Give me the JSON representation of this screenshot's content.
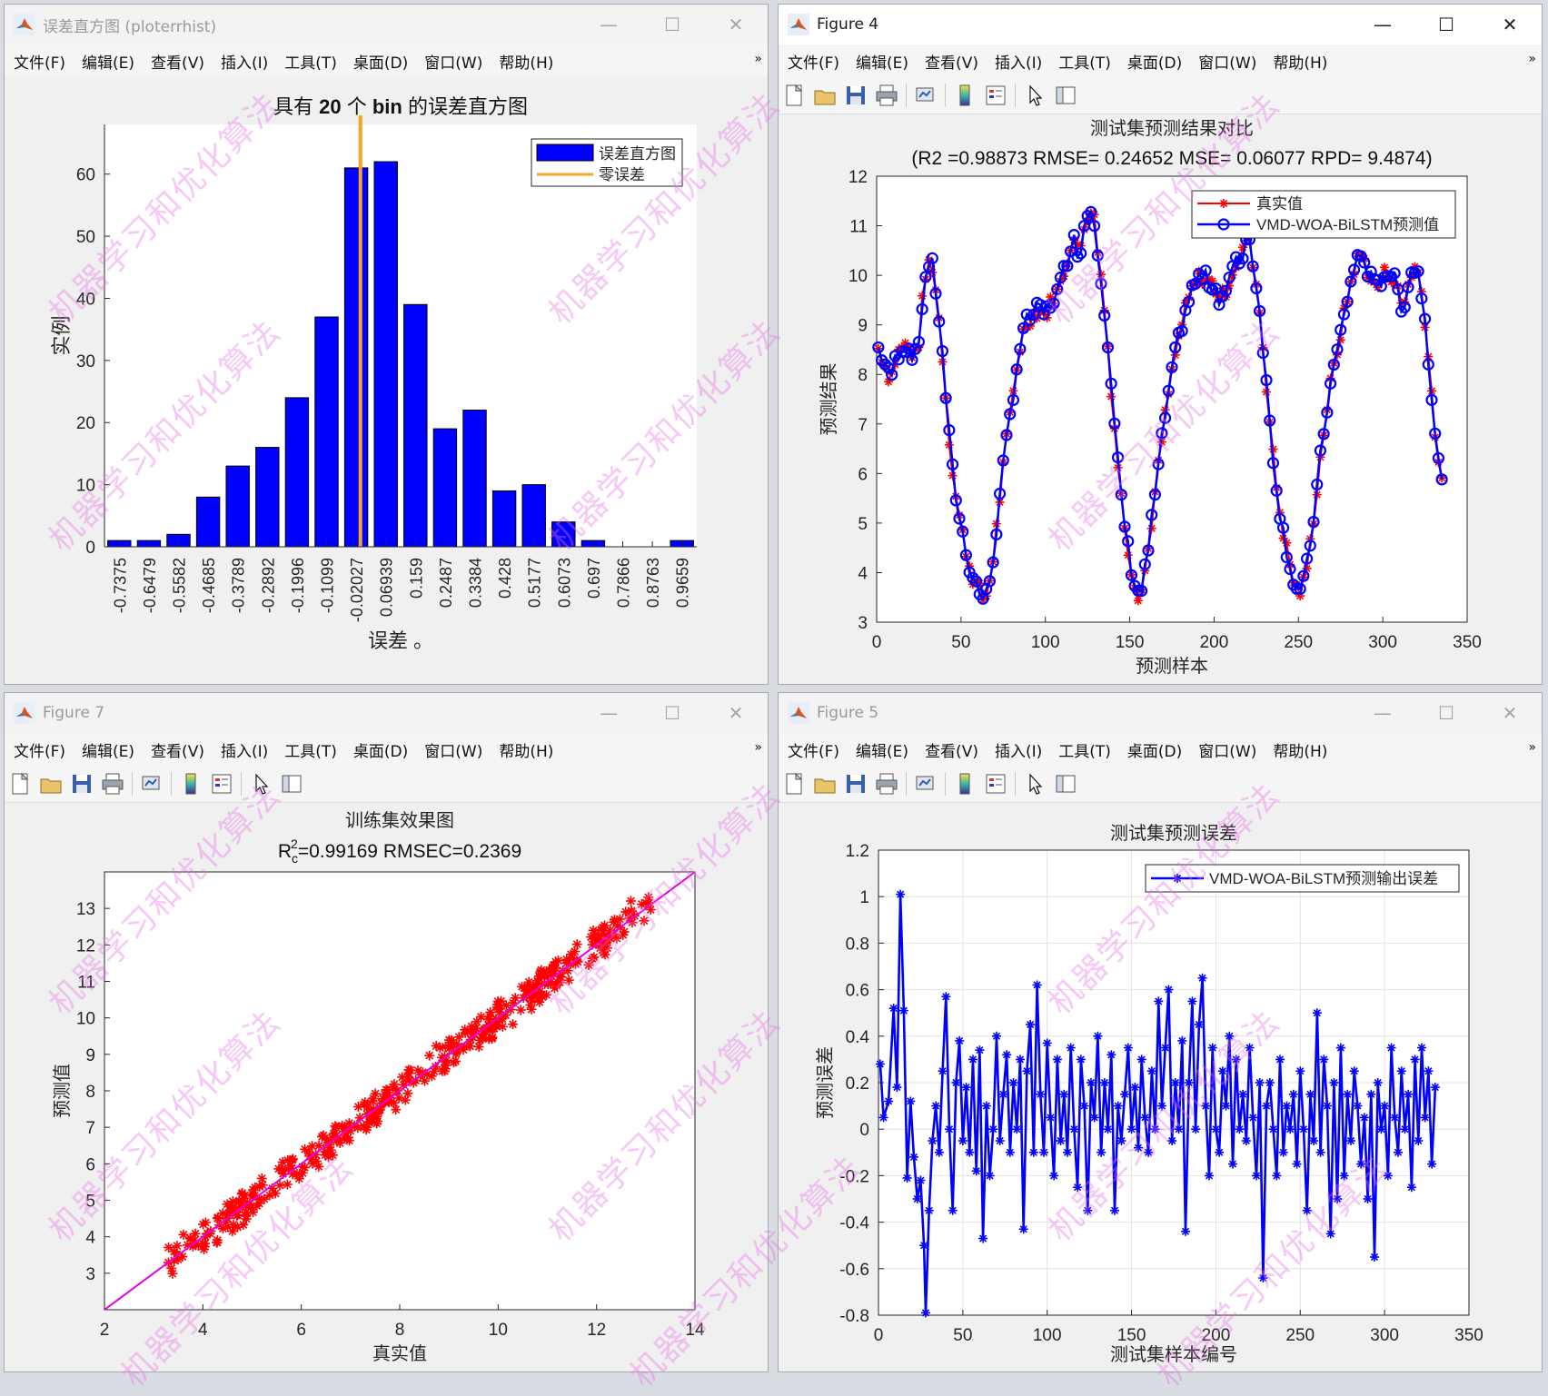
{
  "watermark_text": "机器学习和优化算法",
  "menus": [
    "文件(F)",
    "编辑(E)",
    "查看(V)",
    "插入(I)",
    "工具(T)",
    "桌面(D)",
    "窗口(W)",
    "帮助(H)"
  ],
  "window_buttons": {
    "minimize": "—",
    "maximize": "☐",
    "close": "✕"
  },
  "windows": {
    "hist": {
      "title": "误差直方图 (ploterrhist)",
      "chart_data": {
        "type": "bar",
        "title_parts": [
          "具有 ",
          "20",
          " 个 ",
          "bin",
          " 的误差直方图"
        ],
        "xlabel": "误差 。",
        "ylabel": "实例",
        "categories": [
          "-0.7375",
          "-0.6479",
          "-0.5582",
          "-0.4685",
          "-0.3789",
          "-0.2892",
          "-0.1996",
          "-0.1099",
          "-0.02027",
          "0.06939",
          "0.159",
          "0.2487",
          "0.3384",
          "0.428",
          "0.5177",
          "0.6073",
          "0.697",
          "0.7866",
          "0.8763",
          "0.9659"
        ],
        "values": [
          1,
          1,
          2,
          8,
          13,
          16,
          24,
          37,
          61,
          62,
          39,
          19,
          22,
          9,
          10,
          4,
          1,
          0,
          0,
          1
        ],
        "ylim": [
          0,
          68
        ],
        "yticks": [
          "0",
          "10",
          "20",
          "30",
          "40",
          "50",
          "60"
        ],
        "zero_error_x": -0.0075,
        "legend": [
          "误差直方图",
          "零误差"
        ],
        "colors": {
          "bars": "#0000ff",
          "zero_line": "#f5a623"
        }
      }
    },
    "fig4": {
      "title": "Figure 4",
      "chart_data": {
        "type": "line",
        "title": "测试集预测结果对比",
        "subtitle": "(R2 =0.98873 RMSE= 0.24652 MSE= 0.06077 RPD= 9.4874)",
        "xlabel": "预测样本",
        "ylabel": "预测结果",
        "xlim": [
          0,
          350
        ],
        "ylim": [
          3,
          12
        ],
        "xticks": [
          "0",
          "50",
          "100",
          "150",
          "200",
          "250",
          "300",
          "350"
        ],
        "yticks": [
          "3",
          "4",
          "5",
          "6",
          "7",
          "8",
          "9",
          "10",
          "11",
          "12"
        ],
        "legend": [
          "真实值",
          "VMD-WOA-BiLSTM预测值"
        ],
        "colors": {
          "actual": "#ff0000",
          "predicted": "#0000ff"
        },
        "key_points": [
          [
            0,
            8.6
          ],
          [
            4,
            8.3
          ],
          [
            8,
            7.9
          ],
          [
            12,
            8.4
          ],
          [
            16,
            8.6
          ],
          [
            20,
            8.5
          ],
          [
            24,
            8.3
          ],
          [
            28,
            9.8
          ],
          [
            32,
            10.4
          ],
          [
            36,
            9.5
          ],
          [
            40,
            8.0
          ],
          [
            44,
            6.3
          ],
          [
            48,
            5.3
          ],
          [
            52,
            4.6
          ],
          [
            56,
            4.0
          ],
          [
            60,
            3.7
          ],
          [
            64,
            3.4
          ],
          [
            68,
            4.0
          ],
          [
            72,
            5.2
          ],
          [
            76,
            6.4
          ],
          [
            80,
            7.4
          ],
          [
            84,
            8.4
          ],
          [
            88,
            9.0
          ],
          [
            92,
            9.2
          ],
          [
            96,
            9.3
          ],
          [
            100,
            9.2
          ],
          [
            104,
            9.5
          ],
          [
            108,
            9.7
          ],
          [
            112,
            10.2
          ],
          [
            116,
            10.8
          ],
          [
            120,
            10.4
          ],
          [
            124,
            11.2
          ],
          [
            128,
            11.4
          ],
          [
            132,
            10.3
          ],
          [
            136,
            9.0
          ],
          [
            140,
            7.3
          ],
          [
            144,
            5.8
          ],
          [
            148,
            4.7
          ],
          [
            152,
            3.9
          ],
          [
            156,
            3.5
          ],
          [
            160,
            4.2
          ],
          [
            164,
            5.3
          ],
          [
            168,
            6.4
          ],
          [
            172,
            7.4
          ],
          [
            176,
            8.2
          ],
          [
            180,
            8.9
          ],
          [
            184,
            9.4
          ],
          [
            188,
            9.8
          ],
          [
            192,
            10.0
          ],
          [
            196,
            9.9
          ],
          [
            200,
            9.8
          ],
          [
            204,
            9.5
          ],
          [
            208,
            9.8
          ],
          [
            212,
            10.2
          ],
          [
            216,
            10.3
          ],
          [
            220,
            10.9
          ],
          [
            224,
            10.1
          ],
          [
            228,
            9.0
          ],
          [
            232,
            7.4
          ],
          [
            236,
            6.0
          ],
          [
            240,
            5.0
          ],
          [
            244,
            4.3
          ],
          [
            248,
            3.7
          ],
          [
            252,
            3.6
          ],
          [
            256,
            4.3
          ],
          [
            260,
            5.4
          ],
          [
            264,
            6.6
          ],
          [
            268,
            7.6
          ],
          [
            272,
            8.3
          ],
          [
            276,
            9.0
          ],
          [
            280,
            9.7
          ],
          [
            284,
            10.3
          ],
          [
            288,
            10.4
          ],
          [
            292,
            10.0
          ],
          [
            296,
            9.7
          ],
          [
            300,
            10.0
          ],
          [
            304,
            10.1
          ],
          [
            308,
            9.8
          ],
          [
            312,
            9.3
          ],
          [
            316,
            10.0
          ],
          [
            320,
            10.2
          ],
          [
            324,
            9.5
          ],
          [
            328,
            8.0
          ],
          [
            332,
            6.5
          ],
          [
            336,
            5.5
          ]
        ]
      }
    },
    "fig7": {
      "title": "Figure 7",
      "chart_data": {
        "type": "scatter",
        "title": "训练集效果图",
        "subtitle_parts": [
          "R",
          "c",
          "2",
          "=0.99169  RMSEC=0.2369"
        ],
        "xlabel": "真实值",
        "ylabel": "预测值",
        "xlim": [
          2,
          14
        ],
        "ylim": [
          2,
          14
        ],
        "xticks": [
          "2",
          "4",
          "6",
          "8",
          "10",
          "12",
          "14"
        ],
        "yticks": [
          "3",
          "4",
          "5",
          "6",
          "7",
          "8",
          "9",
          "10",
          "11",
          "12",
          "13"
        ],
        "x_range": [
          3.3,
          13.1
        ],
        "colors": {
          "points": "#ff0000",
          "fit_line": "#e600e6"
        }
      }
    },
    "fig5": {
      "title": "Figure 5",
      "chart_data": {
        "type": "line",
        "title": "测试集预测误差",
        "xlabel": "测试集样本编号",
        "ylabel": "预测误差",
        "xlim": [
          0,
          350
        ],
        "ylim": [
          -0.8,
          1.2
        ],
        "xticks": [
          "0",
          "50",
          "100",
          "150",
          "200",
          "250",
          "300",
          "350"
        ],
        "yticks": [
          "-0.8",
          "-0.6",
          "-0.4",
          "-0.2",
          "0",
          "0.2",
          "0.4",
          "0.6",
          "0.8",
          "1",
          "1.2"
        ],
        "legend": [
          "VMD-WOA-BiLSTM预测输出误差"
        ],
        "colors": {
          "line": "#0000ff"
        },
        "key_points": [
          [
            1,
            0.28
          ],
          [
            3,
            0.05
          ],
          [
            6,
            0.12
          ],
          [
            9,
            0.52
          ],
          [
            11,
            0.18
          ],
          [
            13,
            1.01
          ],
          [
            15,
            0.51
          ],
          [
            17,
            -0.21
          ],
          [
            19,
            0.12
          ],
          [
            21,
            -0.12
          ],
          [
            23,
            -0.3
          ],
          [
            25,
            -0.22
          ],
          [
            27,
            -0.5
          ],
          [
            28,
            -0.79
          ],
          [
            30,
            -0.35
          ],
          [
            32,
            -0.05
          ],
          [
            34,
            0.1
          ],
          [
            36,
            -0.1
          ],
          [
            38,
            0.25
          ],
          [
            40,
            0.57
          ],
          [
            42,
            0.0
          ],
          [
            44,
            -0.35
          ],
          [
            46,
            0.2
          ],
          [
            48,
            0.38
          ],
          [
            50,
            -0.05
          ],
          [
            52,
            0.18
          ],
          [
            54,
            -0.1
          ],
          [
            56,
            0.3
          ],
          [
            58,
            -0.18
          ],
          [
            60,
            0.34
          ],
          [
            62,
            -0.47
          ],
          [
            64,
            0.1
          ],
          [
            66,
            -0.2
          ],
          [
            68,
            0.0
          ],
          [
            70,
            0.4
          ],
          [
            72,
            -0.05
          ],
          [
            74,
            0.15
          ],
          [
            76,
            0.32
          ],
          [
            78,
            -0.1
          ],
          [
            80,
            0.2
          ],
          [
            82,
            0.0
          ],
          [
            84,
            0.3
          ],
          [
            86,
            -0.43
          ],
          [
            88,
            0.25
          ],
          [
            90,
            0.45
          ],
          [
            92,
            -0.1
          ],
          [
            94,
            0.62
          ],
          [
            96,
            0.15
          ],
          [
            98,
            -0.1
          ],
          [
            100,
            0.37
          ],
          [
            102,
            0.05
          ],
          [
            104,
            -0.2
          ],
          [
            106,
            0.3
          ],
          [
            108,
            -0.05
          ],
          [
            110,
            0.15
          ],
          [
            112,
            -0.1
          ],
          [
            114,
            0.35
          ],
          [
            116,
            0.0
          ],
          [
            118,
            -0.25
          ],
          [
            120,
            0.3
          ],
          [
            122,
            0.1
          ],
          [
            124,
            -0.35
          ],
          [
            126,
            0.2
          ],
          [
            128,
            0.05
          ],
          [
            130,
            0.4
          ],
          [
            132,
            -0.1
          ],
          [
            134,
            0.2
          ],
          [
            136,
            0.0
          ],
          [
            138,
            0.32
          ],
          [
            140,
            -0.35
          ],
          [
            142,
            0.1
          ],
          [
            144,
            -0.05
          ],
          [
            146,
            0.15
          ],
          [
            148,
            0.35
          ],
          [
            150,
            0.0
          ],
          [
            152,
            0.18
          ],
          [
            154,
            -0.08
          ],
          [
            156,
            0.3
          ],
          [
            158,
            0.05
          ],
          [
            160,
            -0.1
          ],
          [
            162,
            0.25
          ],
          [
            164,
            0.0
          ],
          [
            166,
            0.55
          ],
          [
            168,
            0.1
          ],
          [
            170,
            0.35
          ],
          [
            172,
            0.6
          ],
          [
            174,
            -0.05
          ],
          [
            176,
            0.2
          ],
          [
            178,
            0.0
          ],
          [
            180,
            0.38
          ],
          [
            182,
            -0.44
          ],
          [
            184,
            0.2
          ],
          [
            186,
            0.55
          ],
          [
            188,
            0.0
          ],
          [
            190,
            0.45
          ],
          [
            192,
            0.65
          ],
          [
            194,
            0.1
          ],
          [
            196,
            -0.2
          ],
          [
            198,
            0.35
          ],
          [
            200,
            0.0
          ],
          [
            202,
            -0.1
          ],
          [
            204,
            0.25
          ],
          [
            206,
            0.1
          ],
          [
            208,
            0.4
          ],
          [
            210,
            -0.15
          ],
          [
            212,
            0.3
          ],
          [
            214,
            0.0
          ],
          [
            216,
            0.15
          ],
          [
            218,
            -0.05
          ],
          [
            220,
            0.35
          ],
          [
            222,
            0.05
          ],
          [
            224,
            -0.2
          ],
          [
            226,
            0.2
          ],
          [
            228,
            -0.64
          ],
          [
            230,
            0.1
          ],
          [
            232,
            0.2
          ],
          [
            234,
            0.0
          ],
          [
            236,
            -0.2
          ],
          [
            238,
            0.3
          ],
          [
            240,
            -0.1
          ],
          [
            242,
            0.1
          ],
          [
            244,
            0.0
          ],
          [
            246,
            0.15
          ],
          [
            248,
            -0.15
          ],
          [
            250,
            0.25
          ],
          [
            252,
            0.0
          ],
          [
            254,
            -0.35
          ],
          [
            256,
            0.15
          ],
          [
            258,
            -0.05
          ],
          [
            260,
            0.5
          ],
          [
            262,
            -0.1
          ],
          [
            264,
            0.3
          ],
          [
            266,
            0.1
          ],
          [
            268,
            -0.45
          ],
          [
            270,
            0.2
          ],
          [
            272,
            -0.3
          ],
          [
            274,
            0.35
          ],
          [
            276,
            -0.2
          ],
          [
            278,
            0.15
          ],
          [
            280,
            -0.05
          ],
          [
            282,
            0.25
          ],
          [
            284,
            0.1
          ],
          [
            286,
            -0.15
          ],
          [
            288,
            0.05
          ],
          [
            290,
            -0.3
          ],
          [
            292,
            0.15
          ],
          [
            294,
            -0.55
          ],
          [
            296,
            0.2
          ],
          [
            298,
            0.0
          ],
          [
            300,
            0.1
          ],
          [
            302,
            -0.2
          ],
          [
            304,
            0.35
          ],
          [
            306,
            0.05
          ],
          [
            308,
            -0.1
          ],
          [
            310,
            0.25
          ],
          [
            312,
            0.0
          ],
          [
            314,
            0.15
          ],
          [
            316,
            -0.25
          ],
          [
            318,
            0.3
          ],
          [
            320,
            -0.05
          ],
          [
            322,
            0.35
          ],
          [
            324,
            0.05
          ],
          [
            326,
            0.25
          ],
          [
            328,
            -0.15
          ],
          [
            330,
            0.18
          ]
        ]
      }
    }
  }
}
